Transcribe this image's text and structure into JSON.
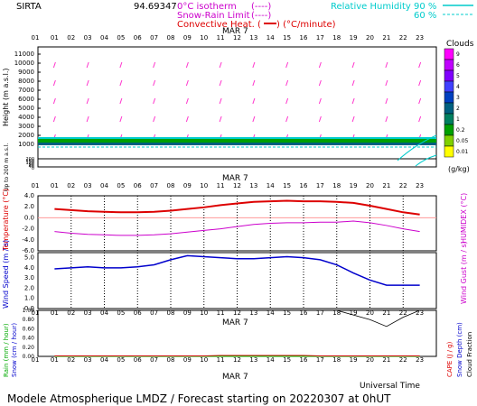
{
  "header": {
    "station": "SIRTA",
    "station_code": "94.69347",
    "legend_isotherm": "0°C isotherm",
    "legend_isotherm_sym": "(----)",
    "legend_snowrain": "Snow-Rain Limit",
    "legend_snowrain_sym": "(----)",
    "legend_convective": "Convective Heat. (",
    "legend_convective_unit": ") (°C/minute)",
    "legend_rh": "Relative Humidity",
    "legend_rh_90": "90 %",
    "legend_rh_60": "60 %"
  },
  "footer": {
    "title": "Modele Atmospherique LMDZ / Forecast starting on 20220307 at 0hUT",
    "universal_time": "Universal Time"
  },
  "chart_data": [
    {
      "type": "heatmap",
      "panel": "cloud-wind-profile",
      "date_label": "MAR  7",
      "x_hours": [
        "01",
        "02",
        "03",
        "04",
        "05",
        "06",
        "07",
        "08",
        "09",
        "10",
        "11",
        "12",
        "13",
        "14",
        "15",
        "16",
        "17",
        "18",
        "19",
        "20",
        "21",
        "22",
        "23"
      ],
      "ylabel": "Height  (m a.s.l.)",
      "y_ticks_upper": [
        1000,
        2000,
        3000,
        4000,
        5000,
        6000,
        7000,
        8000,
        9000,
        10000,
        11000
      ],
      "y_ticks_lower": [
        0,
        20,
        40,
        60,
        80,
        100,
        120,
        140,
        160,
        180,
        200
      ],
      "ylabel_lower": "Up to 200 m a.s.l.",
      "colorbar_title": "Clouds",
      "colorbar_unit": "(g/kg)",
      "colorbar_ticks": [
        "9",
        "6",
        "5",
        "4",
        "3",
        "2",
        "1",
        "0.2",
        "0.05",
        "0.01"
      ],
      "colorbar_colors": [
        "#ff00ff",
        "#c000ff",
        "#8000ff",
        "#4040ff",
        "#0040c0",
        "#006080",
        "#008060",
        "#00a000",
        "#80d000",
        "#ffff00"
      ],
      "cloud_layer_m": [
        900,
        1600
      ]
    },
    {
      "type": "line",
      "panel": "temperature-humidex",
      "date_label": "MAR  7",
      "ylabel": "Temperature (°C)",
      "ylabel_right": "HUMIDEX (°C)",
      "y_ticks": [
        "4.0",
        "2.0",
        "0.0",
        "-2.0",
        "-4.0",
        "-6.0"
      ],
      "ylim": [
        -6,
        4
      ],
      "x_hours": [
        "01",
        "02",
        "03",
        "04",
        "05",
        "06",
        "07",
        "08",
        "09",
        "10",
        "11",
        "12",
        "13",
        "14",
        "15",
        "16",
        "17",
        "18",
        "19",
        "20",
        "21",
        "22",
        "23"
      ],
      "series": [
        {
          "name": "Temperature",
          "color": "#dd0000",
          "values": [
            1.6,
            1.4,
            1.2,
            1.1,
            1.0,
            1.0,
            1.1,
            1.3,
            1.6,
            1.9,
            2.3,
            2.6,
            2.9,
            3.0,
            3.1,
            3.0,
            3.0,
            2.9,
            2.7,
            2.2,
            1.6,
            1.0,
            0.6
          ]
        },
        {
          "name": "Humidex",
          "color": "#cc00cc",
          "values": [
            -2.5,
            -2.8,
            -3.0,
            -3.1,
            -3.2,
            -3.2,
            -3.1,
            -2.9,
            -2.6,
            -2.3,
            -2.0,
            -1.6,
            -1.2,
            -1.0,
            -0.9,
            -0.9,
            -0.8,
            -0.8,
            -0.6,
            -0.9,
            -1.4,
            -2.0,
            -2.5
          ]
        }
      ]
    },
    {
      "type": "line",
      "panel": "wind",
      "ylabel": "Wind Speed (m / s)",
      "ylabel_right": "Wind Gust (m / s)",
      "y_ticks": [
        "5.0",
        "4.0",
        "3.0",
        "2.0",
        "1.0",
        "0.0"
      ],
      "ylim": [
        0,
        5.5
      ],
      "x_hours": [
        "01",
        "02",
        "03",
        "04",
        "05",
        "06",
        "07",
        "08",
        "09",
        "10",
        "11",
        "12",
        "13",
        "14",
        "15",
        "16",
        "17",
        "18",
        "19",
        "20",
        "21",
        "22",
        "23"
      ],
      "series": [
        {
          "name": "Wind Speed",
          "color": "#0000cc",
          "values": [
            3.9,
            4.0,
            4.1,
            4.0,
            4.0,
            4.1,
            4.3,
            4.8,
            5.2,
            5.1,
            5.0,
            4.9,
            4.9,
            5.0,
            5.1,
            5.0,
            4.8,
            4.3,
            3.5,
            2.8,
            2.3,
            2.3,
            2.3
          ]
        }
      ]
    },
    {
      "type": "line",
      "panel": "precipitation",
      "date_label": "MAR  7",
      "ylabel": "Rain (mm / hour)",
      "ylabel2": "Snow (cm / hour)",
      "ylabel_right1": "CAPE (J / g)",
      "ylabel_right2": "Snow Depth (cm)",
      "ylabel_right3": "Cloud Fraction",
      "y_ticks": [
        "1.00",
        "0.80",
        "0.60",
        "0.40",
        "0.20",
        "0.00"
      ],
      "ylim": [
        0,
        1.0
      ],
      "x_hours": [
        "01",
        "02",
        "03",
        "04",
        "05",
        "06",
        "07",
        "08",
        "09",
        "10",
        "11",
        "12",
        "13",
        "14",
        "15",
        "16",
        "17",
        "18",
        "19",
        "20",
        "21",
        "22",
        "23"
      ],
      "series": [
        {
          "name": "Rain",
          "color": "#00cc00",
          "values": [
            0,
            0,
            0,
            0,
            0,
            0,
            0,
            0,
            0,
            0,
            0,
            0,
            0,
            0,
            0,
            0,
            0,
            0,
            0,
            0,
            0,
            0,
            0
          ]
        },
        {
          "name": "CAPE",
          "color": "#cc0000",
          "values": [
            0.01,
            0.01,
            0.01,
            0.01,
            0.01,
            0.01,
            0.01,
            0.01,
            0.01,
            0.01,
            0.02,
            0.02,
            0.02,
            0.02,
            0.02,
            0.02,
            0.01,
            0.01,
            0.01,
            0.01,
            0.01,
            0.01,
            0.01
          ]
        },
        {
          "name": "Cloud Fraction",
          "color": "#000000",
          "values": [
            null,
            null,
            null,
            null,
            null,
            null,
            null,
            null,
            null,
            null,
            null,
            null,
            null,
            null,
            null,
            null,
            null,
            1.0,
            0.9,
            0.8,
            0.65,
            0.85,
            1.0
          ]
        }
      ]
    }
  ]
}
